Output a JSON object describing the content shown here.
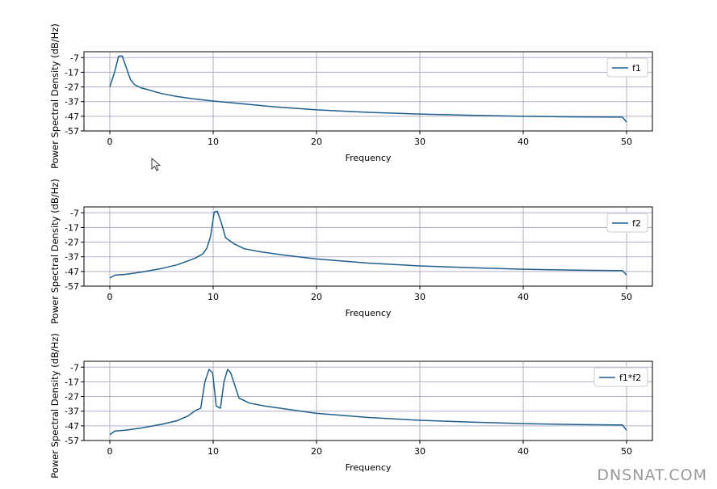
{
  "watermark": "DNSNAT.COM",
  "colors": {
    "line": "#1f5f8b",
    "grid": "#b0b0c8"
  },
  "chart_data": [
    {
      "type": "line",
      "xlabel": "Frequency",
      "ylabel": "Power Spectral Density (dB/Hz)",
      "xlim": [
        -2.5,
        52.5
      ],
      "ylim": [
        -57,
        -3
      ],
      "xticks": [
        0,
        10,
        20,
        30,
        40,
        50
      ],
      "yticks": [
        -57,
        -47,
        -37,
        -27,
        -17,
        -7
      ],
      "grid": true,
      "legend_position": "top-right",
      "series": [
        {
          "name": "f1",
          "x": [
            0,
            0.5,
            0.85,
            1.2,
            1.5,
            2.0,
            2.4,
            3,
            4,
            5,
            6.5,
            8,
            10,
            13,
            16,
            20,
            25,
            30,
            35,
            40,
            45,
            49.6,
            50
          ],
          "y": [
            -27,
            -16,
            -6,
            -6,
            -12,
            -22,
            -25.5,
            -27.5,
            -29.5,
            -31.5,
            -33.5,
            -35,
            -36.6,
            -38.6,
            -40.6,
            -42.6,
            -44.3,
            -45.5,
            -46.3,
            -47,
            -47.4,
            -47.6,
            -51
          ]
        },
        {
          "name": "f2",
          "x": [
            0,
            0.5,
            1.5,
            3,
            5,
            6.5,
            7.5,
            8.3,
            9,
            9.4,
            9.75,
            10.1,
            10.4,
            10.8,
            11.2,
            12,
            13,
            14.5,
            16.5,
            20,
            25,
            30,
            35,
            40,
            45,
            49.6,
            50
          ],
          "y": [
            -51.5,
            -49.5,
            -49,
            -47.5,
            -45,
            -42.5,
            -40,
            -37.8,
            -35,
            -31,
            -23,
            -6.5,
            -6,
            -14,
            -24,
            -28,
            -31.5,
            -33.5,
            -35.5,
            -38.5,
            -41.3,
            -43.2,
            -44.5,
            -45.5,
            -46.1,
            -46.4,
            -49.5
          ]
        },
        {
          "name": "f1*f2",
          "x": [
            0,
            0.5,
            1.5,
            3,
            5,
            6.5,
            7.5,
            8.3,
            8.8,
            9.2,
            9.6,
            9.95,
            10.3,
            10.7,
            11.05,
            11.4,
            11.7,
            12.5,
            13.5,
            15,
            17,
            20,
            25,
            30,
            35,
            40,
            45,
            49.6,
            50
          ],
          "y": [
            -53,
            -50.5,
            -50,
            -48.5,
            -46,
            -43.5,
            -40.5,
            -36.5,
            -35,
            -17,
            -8.5,
            -11,
            -33.5,
            -35,
            -17,
            -8.5,
            -11,
            -28,
            -31.5,
            -33.5,
            -35.5,
            -38.5,
            -41.3,
            -43.2,
            -44.5,
            -45.5,
            -46.1,
            -46.4,
            -50
          ]
        }
      ]
    }
  ]
}
